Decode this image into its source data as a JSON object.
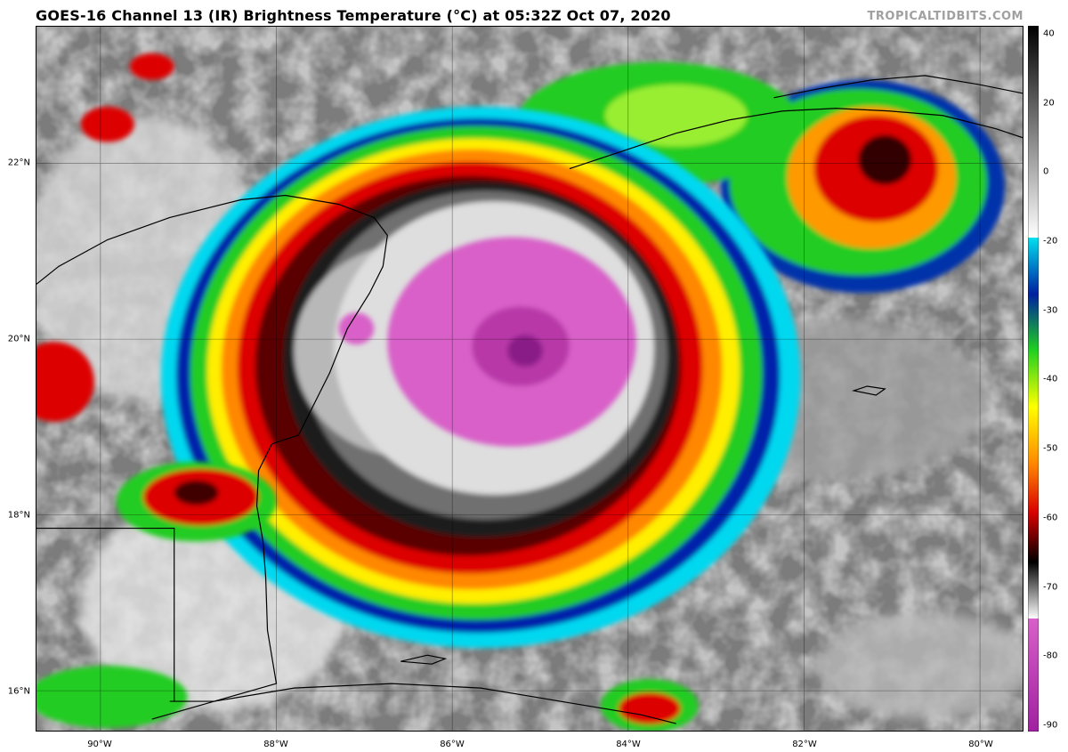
{
  "header": {
    "title": "GOES-16 Channel 13 (IR) Brightness Temperature (°C) at 05:32Z Oct 07, 2020",
    "credit": "TROPICALTIDBITS.COM"
  },
  "map": {
    "lat_labels": [
      "22°N",
      "20°N",
      "18°N",
      "16°N"
    ],
    "lon_labels": [
      "90°W",
      "88°W",
      "86°W",
      "84°W",
      "82°W",
      "80°W"
    ]
  },
  "colorbar": {
    "ticks": [
      "40",
      "20",
      "0",
      "-20",
      "-30",
      "-40",
      "-50",
      "-60",
      "-70",
      "-80",
      "-90"
    ],
    "min": -90,
    "max": 40,
    "colors": {
      "magenta": "#d860c8",
      "purple": "#a020a0",
      "black": "#000000",
      "red": "#d80000",
      "orange": "#ff8800",
      "yellow": "#ffff00",
      "green": "#20d020",
      "blue": "#0020a0",
      "cyan": "#00e0f0",
      "gray": "#888888"
    }
  }
}
